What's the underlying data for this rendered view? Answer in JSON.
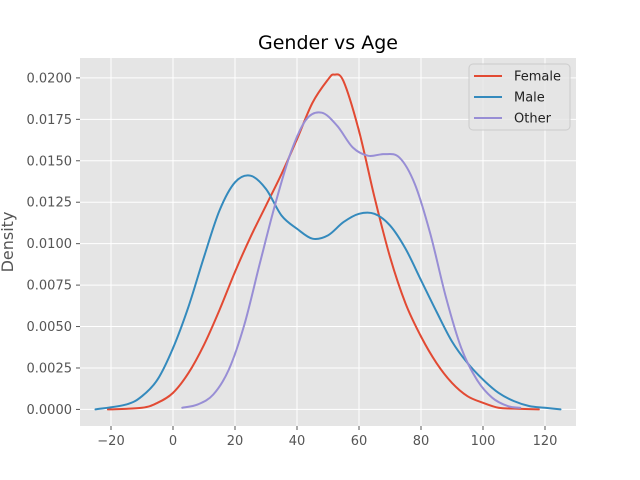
{
  "chart_data": {
    "type": "line",
    "title": "Gender vs Age",
    "xlabel": "",
    "ylabel": "Density",
    "xlim": [
      -30,
      130
    ],
    "ylim": [
      -0.001,
      0.0212
    ],
    "xticks": [
      -20,
      0,
      20,
      40,
      60,
      80,
      100,
      120
    ],
    "xtick_labels": [
      "−20",
      "0",
      "20",
      "40",
      "60",
      "80",
      "100",
      "120"
    ],
    "yticks": [
      0.0,
      0.0025,
      0.005,
      0.0075,
      0.01,
      0.0125,
      0.015,
      0.0175,
      0.02
    ],
    "ytick_labels": [
      "0.0000",
      "0.0025",
      "0.0050",
      "0.0075",
      "0.0100",
      "0.0125",
      "0.0150",
      "0.0175",
      "0.0200"
    ],
    "grid": true,
    "legend_position": "top-right",
    "series": [
      {
        "name": "Female",
        "color": "#E24A33",
        "x": [
          -21,
          -10,
          -5,
          0,
          5,
          10,
          15,
          20,
          25,
          30,
          35,
          40,
          45,
          50,
          52,
          55,
          60,
          65,
          70,
          75,
          80,
          85,
          90,
          95,
          100,
          105,
          110,
          118
        ],
        "y": [
          0.0,
          0.0001,
          0.0004,
          0.001,
          0.0022,
          0.0039,
          0.006,
          0.0083,
          0.0104,
          0.0123,
          0.0142,
          0.0163,
          0.0185,
          0.0199,
          0.0202,
          0.0198,
          0.0168,
          0.0128,
          0.0092,
          0.0064,
          0.0044,
          0.0028,
          0.0016,
          0.0008,
          0.0004,
          0.0001,
          5e-05,
          0.0
        ]
      },
      {
        "name": "Male",
        "color": "#348ABD",
        "x": [
          -25,
          -15,
          -10,
          -5,
          0,
          5,
          10,
          15,
          20,
          25,
          30,
          35,
          40,
          45,
          50,
          55,
          60,
          65,
          70,
          75,
          80,
          85,
          90,
          95,
          100,
          105,
          110,
          115,
          120,
          125
        ],
        "y": [
          0.0,
          0.0003,
          0.0008,
          0.0018,
          0.0037,
          0.0062,
          0.0092,
          0.012,
          0.0137,
          0.0141,
          0.0133,
          0.0117,
          0.0109,
          0.0103,
          0.0105,
          0.0113,
          0.0118,
          0.0118,
          0.0111,
          0.0097,
          0.0078,
          0.0059,
          0.0041,
          0.0028,
          0.0018,
          0.001,
          0.0005,
          0.0002,
          0.0001,
          0.0
        ]
      },
      {
        "name": "Other",
        "color": "#988ED5",
        "x": [
          3,
          8,
          13,
          18,
          23,
          28,
          33,
          38,
          43,
          48,
          53,
          58,
          63,
          68,
          73,
          78,
          83,
          88,
          93,
          98,
          103,
          108,
          112
        ],
        "y": [
          0.0001,
          0.0003,
          0.0009,
          0.0024,
          0.0051,
          0.0088,
          0.0124,
          0.0155,
          0.0175,
          0.0179,
          0.0171,
          0.0158,
          0.0153,
          0.0154,
          0.0152,
          0.0136,
          0.0106,
          0.0068,
          0.0037,
          0.0018,
          0.0007,
          0.0002,
          0.0001
        ]
      }
    ]
  }
}
